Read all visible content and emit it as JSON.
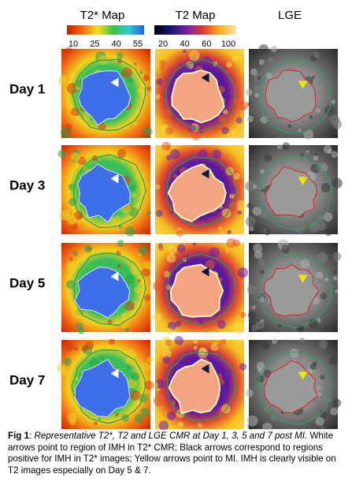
{
  "columns": [
    {
      "title": "T2* Map",
      "colorbar_ticks": [
        10,
        25,
        40,
        55
      ]
    },
    {
      "title": "T2 Map",
      "colorbar_ticks": [
        20,
        40,
        60,
        100
      ]
    },
    {
      "title": "LGE"
    }
  ],
  "rows": [
    "Day 1",
    "Day 3",
    "Day 5",
    "Day 7"
  ],
  "caption": {
    "label": "Fig 1",
    "separator": ":",
    "italic": "Representative T2*, T2 and LGE CMR at Day 1, 3, 5 and 7 post MI.",
    "text": "White arrows point to region of IMH in T2* CMR;  Black arrows correspond to regions positive for IMH in T2* images; Yellow arrows point to MI. IMH is clearly visible on T2 images especially on Day 5 & 7."
  }
}
